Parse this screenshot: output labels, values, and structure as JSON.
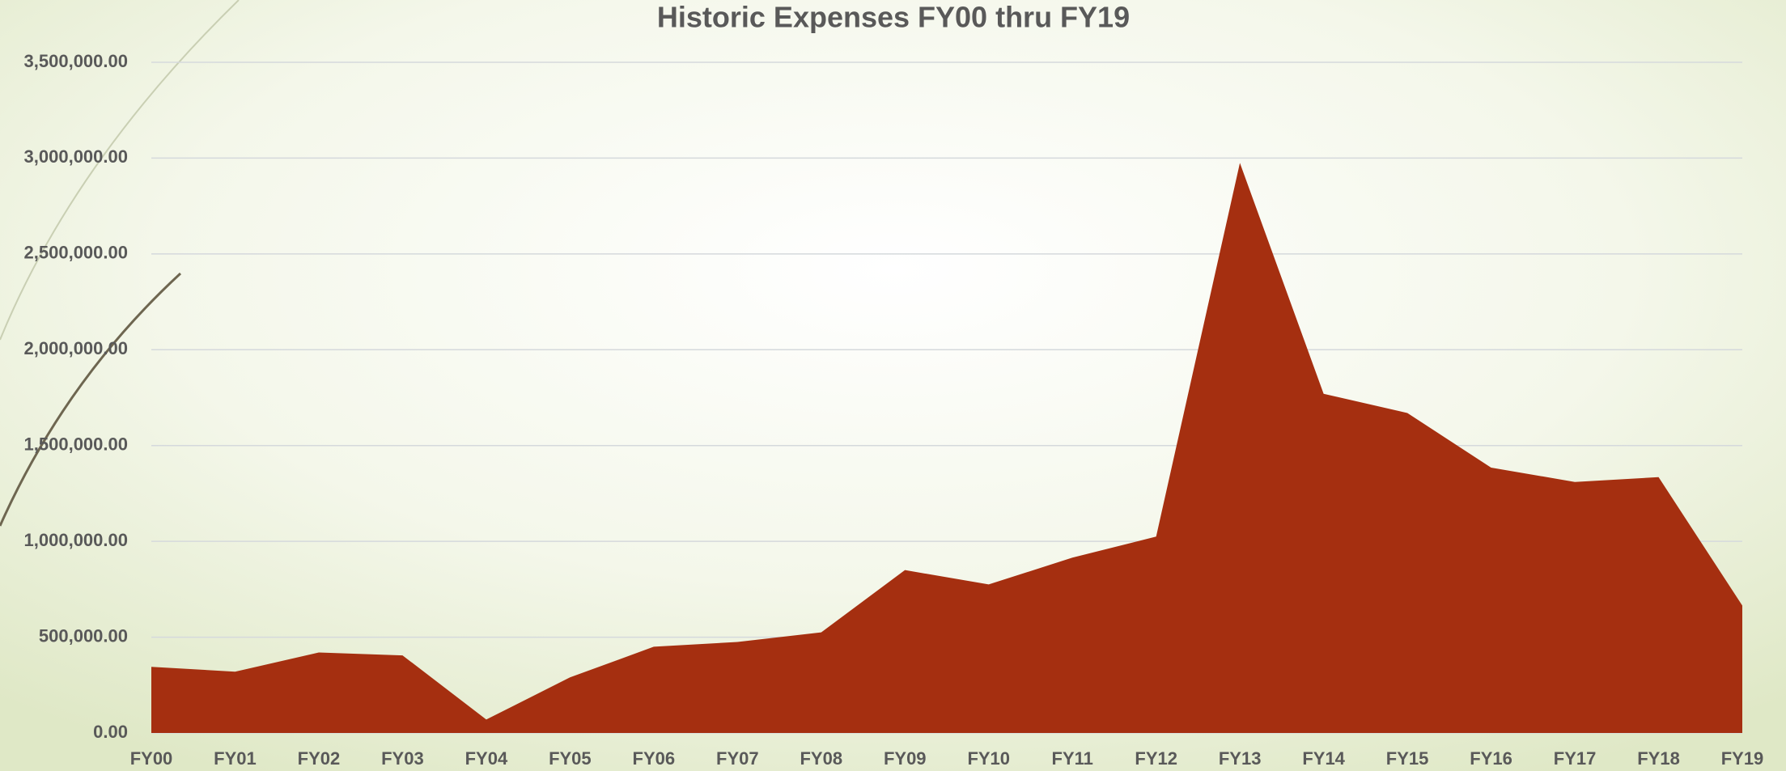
{
  "chart_data": {
    "type": "area",
    "title": "Historic Expenses FY00 thru FY19",
    "categories": [
      "FY00",
      "FY01",
      "FY02",
      "FY03",
      "FY04",
      "FY05",
      "FY06",
      "FY07",
      "FY08",
      "FY09",
      "FY10",
      "FY11",
      "FY12",
      "FY13",
      "FY14",
      "FY15",
      "FY16",
      "FY17",
      "FY18",
      "FY19"
    ],
    "values": [
      345000,
      320000,
      420000,
      405000,
      70000,
      290000,
      450000,
      475000,
      525000,
      850000,
      775000,
      915000,
      1025000,
      2975000,
      1770000,
      1670000,
      1385000,
      1310000,
      1335000,
      665000
    ],
    "color": "#a52f10",
    "ylim": [
      0,
      3500000
    ],
    "yticks": [
      {
        "value": 0,
        "label": "0.00"
      },
      {
        "value": 500000,
        "label": "500,000.00"
      },
      {
        "value": 1000000,
        "label": "1,000,000.00"
      },
      {
        "value": 1500000,
        "label": "1,500,000.00"
      },
      {
        "value": 2000000,
        "label": "2,000,000.00"
      },
      {
        "value": 2500000,
        "label": "2,500,000.00"
      },
      {
        "value": 3000000,
        "label": "3,000,000.00"
      },
      {
        "value": 3500000,
        "label": "3,500,000.00"
      }
    ],
    "grid": true
  }
}
